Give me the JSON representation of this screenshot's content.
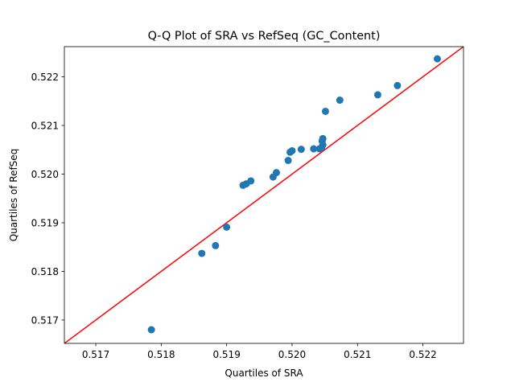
{
  "chart_data": {
    "type": "scatter",
    "title": "Q-Q Plot of SRA vs RefSeq (GC_Content)",
    "xlabel": "Quartiles of SRA",
    "ylabel": "Quartiles of RefSeq",
    "xlim": [
      0.51652,
      0.52262
    ],
    "ylim": [
      0.51652,
      0.52262
    ],
    "xticks": [
      0.517,
      0.518,
      0.519,
      0.52,
      0.521,
      0.522
    ],
    "yticks": [
      0.517,
      0.518,
      0.519,
      0.52,
      0.521,
      0.522
    ],
    "grid": false,
    "marker_color": "#1f77b4",
    "reference_line": {
      "color": "#ff0000",
      "points": [
        [
          0.51652,
          0.51652
        ],
        [
          0.52262,
          0.52262
        ]
      ]
    },
    "points": [
      {
        "x": 0.51785,
        "y": 0.5168
      },
      {
        "x": 0.51862,
        "y": 0.51837
      },
      {
        "x": 0.51883,
        "y": 0.51853
      },
      {
        "x": 0.519,
        "y": 0.51891
      },
      {
        "x": 0.51925,
        "y": 0.51977
      },
      {
        "x": 0.5193,
        "y": 0.5198
      },
      {
        "x": 0.51937,
        "y": 0.51986
      },
      {
        "x": 0.51971,
        "y": 0.51994
      },
      {
        "x": 0.51976,
        "y": 0.52003
      },
      {
        "x": 0.51994,
        "y": 0.52028
      },
      {
        "x": 0.51997,
        "y": 0.52045
      },
      {
        "x": 0.52,
        "y": 0.52048
      },
      {
        "x": 0.52014,
        "y": 0.52051
      },
      {
        "x": 0.52033,
        "y": 0.52052
      },
      {
        "x": 0.52042,
        "y": 0.52052
      },
      {
        "x": 0.52045,
        "y": 0.52054
      },
      {
        "x": 0.52047,
        "y": 0.5206
      },
      {
        "x": 0.52046,
        "y": 0.52068
      },
      {
        "x": 0.52047,
        "y": 0.52073
      },
      {
        "x": 0.52051,
        "y": 0.52129
      },
      {
        "x": 0.52073,
        "y": 0.52152
      },
      {
        "x": 0.52131,
        "y": 0.52163
      },
      {
        "x": 0.52161,
        "y": 0.52182
      },
      {
        "x": 0.52222,
        "y": 0.52237
      }
    ]
  }
}
